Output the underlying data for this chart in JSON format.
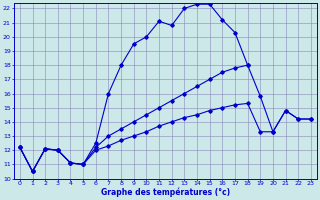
{
  "title": "Graphe des températures (°c)",
  "bg_color": "#cce8e8",
  "grid_color": "#8888bb",
  "line_color": "#0000cc",
  "xlim": [
    -0.5,
    23.5
  ],
  "ylim": [
    10,
    22.4
  ],
  "xticks": [
    0,
    1,
    2,
    3,
    4,
    5,
    6,
    7,
    8,
    9,
    10,
    11,
    12,
    13,
    14,
    15,
    16,
    17,
    18,
    19,
    20,
    21,
    22,
    23
  ],
  "yticks": [
    10,
    11,
    12,
    13,
    14,
    15,
    16,
    17,
    18,
    19,
    20,
    21,
    22
  ],
  "line1_x": [
    0,
    1,
    2,
    3,
    4,
    5,
    6,
    7,
    8,
    9,
    10,
    11,
    12,
    13,
    14,
    15,
    16,
    17,
    18,
    19,
    20,
    21,
    22,
    23
  ],
  "line1_y": [
    12.2,
    10.5,
    12.1,
    12.0,
    11.1,
    11.0,
    12.5,
    16.0,
    18.0,
    19.5,
    20.0,
    21.1,
    20.8,
    22.0,
    22.3,
    22.3,
    21.2,
    20.3,
    18.0,
    null,
    null,
    null,
    null,
    null
  ],
  "line2_x": [
    0,
    1,
    2,
    3,
    4,
    5,
    6,
    7,
    8,
    9,
    10,
    11,
    12,
    13,
    14,
    15,
    16,
    17,
    18,
    19,
    20,
    21,
    22,
    23
  ],
  "line2_y": [
    12.2,
    10.5,
    12.1,
    12.0,
    11.1,
    11.0,
    12.2,
    13.0,
    13.5,
    14.0,
    14.5,
    15.0,
    15.5,
    16.0,
    16.5,
    17.0,
    17.5,
    17.8,
    18.0,
    15.8,
    13.3,
    14.8,
    14.2,
    14.2
  ],
  "line3_x": [
    0,
    1,
    2,
    3,
    4,
    5,
    6,
    7,
    8,
    9,
    10,
    11,
    12,
    13,
    14,
    15,
    16,
    17,
    18,
    19,
    20,
    21,
    22,
    23
  ],
  "line3_y": [
    12.2,
    10.5,
    12.1,
    12.0,
    11.1,
    11.0,
    12.0,
    12.3,
    12.7,
    13.0,
    13.3,
    13.7,
    14.0,
    14.3,
    14.5,
    14.8,
    15.0,
    15.2,
    15.3,
    13.3,
    13.3,
    14.8,
    14.2,
    14.2
  ]
}
